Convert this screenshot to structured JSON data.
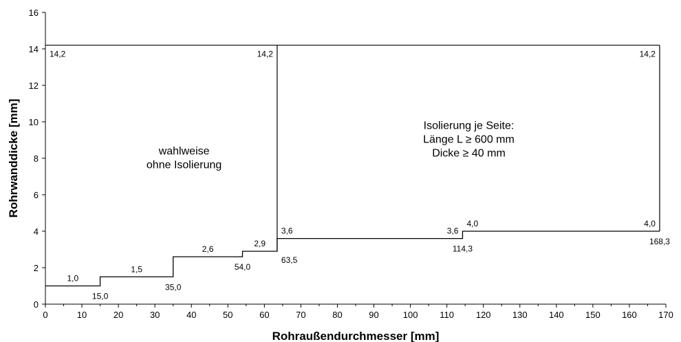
{
  "chart_data": {
    "type": "line",
    "xlabel": "Rohraußendurchmesser [mm]",
    "ylabel": "Rohrwanddicke [mm]",
    "xlim": [
      0,
      170
    ],
    "ylim": [
      0,
      16
    ],
    "x_ticks": [
      0,
      10,
      20,
      30,
      40,
      50,
      60,
      70,
      80,
      90,
      100,
      110,
      120,
      130,
      140,
      150,
      160,
      170
    ],
    "y_ticks": [
      0,
      2,
      4,
      6,
      8,
      10,
      12,
      14,
      16
    ],
    "grid": false,
    "step_line": {
      "x": [
        0,
        15.0,
        15.0,
        35.0,
        35.0,
        54.0,
        54.0,
        63.5,
        63.5,
        114.3,
        114.3,
        168.3
      ],
      "y": [
        1.0,
        1.0,
        1.5,
        1.5,
        2.6,
        2.6,
        2.9,
        2.9,
        3.6,
        3.6,
        4.0,
        4.0
      ]
    },
    "boundaries": [
      {
        "name": "upper-limit",
        "x": [
          0,
          168.3
        ],
        "y": [
          14.2,
          14.2
        ]
      },
      {
        "name": "divider-63-5",
        "x": [
          63.5,
          63.5
        ],
        "y": [
          2.9,
          14.2
        ]
      },
      {
        "name": "right-edge-168-3",
        "x": [
          168.3,
          168.3
        ],
        "y": [
          4.0,
          14.2
        ]
      }
    ],
    "value_labels": [
      {
        "name": "label-y-1-0",
        "text": "1,0",
        "x": 7.5,
        "y": 1.0,
        "pos": "above"
      },
      {
        "name": "label-y-1-5",
        "text": "1,5",
        "x": 25,
        "y": 1.5,
        "pos": "above"
      },
      {
        "name": "label-y-2-6",
        "text": "2,6",
        "x": 44.5,
        "y": 2.6,
        "pos": "above"
      },
      {
        "name": "label-y-2-9",
        "text": "2,9",
        "x": 58.75,
        "y": 2.9,
        "pos": "above"
      },
      {
        "name": "label-y-3-6-l",
        "text": "3,6",
        "x": 63.5,
        "y": 3.6,
        "pos": "above-right"
      },
      {
        "name": "label-y-3-6-r",
        "text": "3,6",
        "x": 114.3,
        "y": 3.6,
        "pos": "above-left"
      },
      {
        "name": "label-y-4-0-l",
        "text": "4,0",
        "x": 114.3,
        "y": 4.0,
        "pos": "above-right"
      },
      {
        "name": "label-y-4-0-r",
        "text": "4,0",
        "x": 168.3,
        "y": 4.0,
        "pos": "above-left"
      },
      {
        "name": "label-y-14-2-a",
        "text": "14,2",
        "x": 0,
        "y": 14.2,
        "pos": "below-right"
      },
      {
        "name": "label-y-14-2-b",
        "text": "14,2",
        "x": 63.5,
        "y": 14.2,
        "pos": "below-left"
      },
      {
        "name": "label-y-14-2-c",
        "text": "14,2",
        "x": 168.3,
        "y": 14.2,
        "pos": "below-left"
      },
      {
        "name": "label-x-15-0",
        "text": "15,0",
        "x": 15.0,
        "y": 1.0,
        "pos": "below"
      },
      {
        "name": "label-x-35-0",
        "text": "35,0",
        "x": 35.0,
        "y": 1.5,
        "pos": "below"
      },
      {
        "name": "label-x-54-0",
        "text": "54,0",
        "x": 54.0,
        "y": 2.6,
        "pos": "below"
      },
      {
        "name": "label-x-63-5",
        "text": "63,5",
        "x": 63.5,
        "y": 2.9,
        "pos": "below-right"
      },
      {
        "name": "label-x-114-3",
        "text": "114,3",
        "x": 114.3,
        "y": 3.6,
        "pos": "below"
      },
      {
        "name": "label-x-168-3",
        "text": "168,3",
        "x": 168.3,
        "y": 4.0,
        "pos": "below"
      }
    ],
    "regions": [
      {
        "name": "region-left-text",
        "lines": [
          "wahlweise",
          "ohne Isolierung"
        ],
        "x": 38,
        "y": 8.2
      },
      {
        "name": "region-right-text",
        "lines": [
          "Isolierung je Seite:",
          "Länge L ≥ 600 mm",
          "Dicke ≥ 40 mm"
        ],
        "x": 116,
        "y": 9.6
      }
    ]
  }
}
